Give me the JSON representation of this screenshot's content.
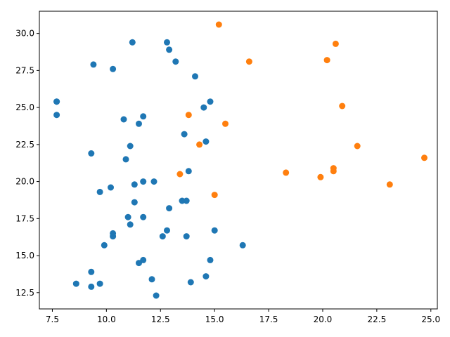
{
  "chart_data": {
    "type": "scatter",
    "title": "",
    "xlabel": "",
    "ylabel": "",
    "xlim": [
      6.9,
      25.3
    ],
    "ylim": [
      11.4,
      31.5
    ],
    "x_ticks": [
      7.5,
      10.0,
      12.5,
      15.0,
      17.5,
      20.0,
      22.5,
      25.0
    ],
    "y_ticks": [
      12.5,
      15.0,
      17.5,
      20.0,
      22.5,
      25.0,
      27.5,
      30.0
    ],
    "x_tick_labels": [
      "7.5",
      "10.0",
      "12.5",
      "15.0",
      "17.5",
      "20.0",
      "22.5",
      "25.0"
    ],
    "y_tick_labels": [
      "12.5",
      "15.0",
      "17.5",
      "20.0",
      "22.5",
      "25.0",
      "27.5",
      "30.0"
    ],
    "grid": false,
    "legend": "none",
    "series": [
      {
        "color": "#1f77b4",
        "points": [
          [
            7.7,
            25.4
          ],
          [
            7.7,
            25.4
          ],
          [
            7.7,
            24.5
          ],
          [
            8.6,
            13.1
          ],
          [
            9.3,
            12.9
          ],
          [
            9.3,
            13.9
          ],
          [
            9.3,
            21.9
          ],
          [
            9.4,
            27.9
          ],
          [
            9.7,
            19.3
          ],
          [
            9.7,
            13.1
          ],
          [
            9.9,
            15.7
          ],
          [
            10.2,
            19.6
          ],
          [
            10.3,
            16.5
          ],
          [
            10.3,
            16.3
          ],
          [
            10.3,
            27.6
          ],
          [
            10.8,
            24.2
          ],
          [
            10.9,
            21.5
          ],
          [
            11.0,
            17.6
          ],
          [
            11.1,
            17.1
          ],
          [
            11.1,
            22.4
          ],
          [
            11.2,
            29.4
          ],
          [
            11.3,
            19.8
          ],
          [
            11.3,
            18.6
          ],
          [
            11.5,
            23.9
          ],
          [
            11.5,
            14.5
          ],
          [
            11.7,
            24.4
          ],
          [
            11.7,
            20.0
          ],
          [
            11.7,
            17.6
          ],
          [
            11.7,
            14.7
          ],
          [
            12.1,
            13.4
          ],
          [
            12.2,
            20.0
          ],
          [
            12.3,
            12.3
          ],
          [
            12.6,
            16.3
          ],
          [
            12.8,
            16.7
          ],
          [
            12.8,
            29.4
          ],
          [
            12.9,
            28.9
          ],
          [
            12.9,
            18.2
          ],
          [
            13.2,
            28.1
          ],
          [
            13.5,
            18.7
          ],
          [
            13.6,
            23.2
          ],
          [
            13.7,
            18.7
          ],
          [
            13.7,
            16.3
          ],
          [
            13.8,
            20.7
          ],
          [
            13.9,
            13.2
          ],
          [
            14.1,
            27.1
          ],
          [
            14.5,
            25.0
          ],
          [
            14.6,
            22.7
          ],
          [
            14.6,
            13.6
          ],
          [
            14.8,
            25.4
          ],
          [
            14.8,
            14.7
          ],
          [
            15.0,
            16.7
          ],
          [
            16.3,
            15.7
          ]
        ]
      },
      {
        "color": "#ff7f0e",
        "points": [
          [
            13.4,
            20.5
          ],
          [
            13.8,
            24.5
          ],
          [
            14.3,
            22.5
          ],
          [
            15.0,
            19.1
          ],
          [
            15.2,
            30.6
          ],
          [
            15.5,
            23.9
          ],
          [
            16.6,
            28.1
          ],
          [
            18.3,
            20.6
          ],
          [
            19.9,
            20.3
          ],
          [
            20.2,
            28.2
          ],
          [
            20.5,
            20.7
          ],
          [
            20.5,
            20.9
          ],
          [
            20.6,
            29.3
          ],
          [
            20.9,
            25.1
          ],
          [
            21.6,
            22.4
          ],
          [
            23.1,
            19.8
          ],
          [
            24.7,
            21.6
          ]
        ]
      }
    ]
  }
}
